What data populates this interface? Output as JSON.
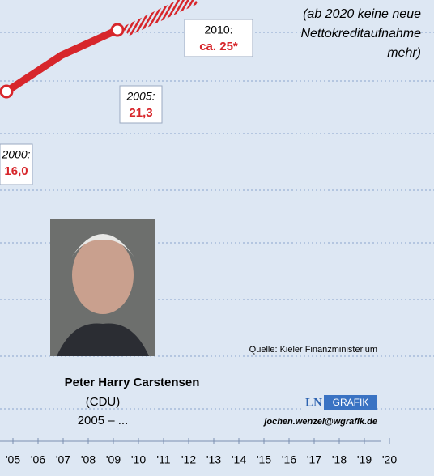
{
  "chart_data": {
    "type": "line",
    "categories": [
      "2000:",
      "2005:",
      "2010:"
    ],
    "values": [
      16.0,
      21.3,
      25
    ],
    "value_labels": [
      "16,0",
      "21,3",
      "ca. 25*"
    ],
    "color": "#d7262b",
    "annotation": [
      "(ab 2020 keine neue",
      "Nettokreditaufnahme",
      "mehr)"
    ],
    "source": "Quelle: Kieler Finanzministerium",
    "x_axis_labels": [
      "'05",
      "'06",
      "'07",
      "'08",
      "'09",
      "'10",
      "'11",
      "'12",
      "'13",
      "'14",
      "'15",
      "'16",
      "'17",
      "'18",
      "'19",
      "'20"
    ]
  },
  "portrait": {
    "name": "Peter Harry Carstensen",
    "party": "(CDU)",
    "term": "2005 – ..."
  },
  "credit": {
    "logo": "LN",
    "logo_tag": "GRAFIK",
    "email": "jochen.wenzel@wgrafik.de"
  }
}
